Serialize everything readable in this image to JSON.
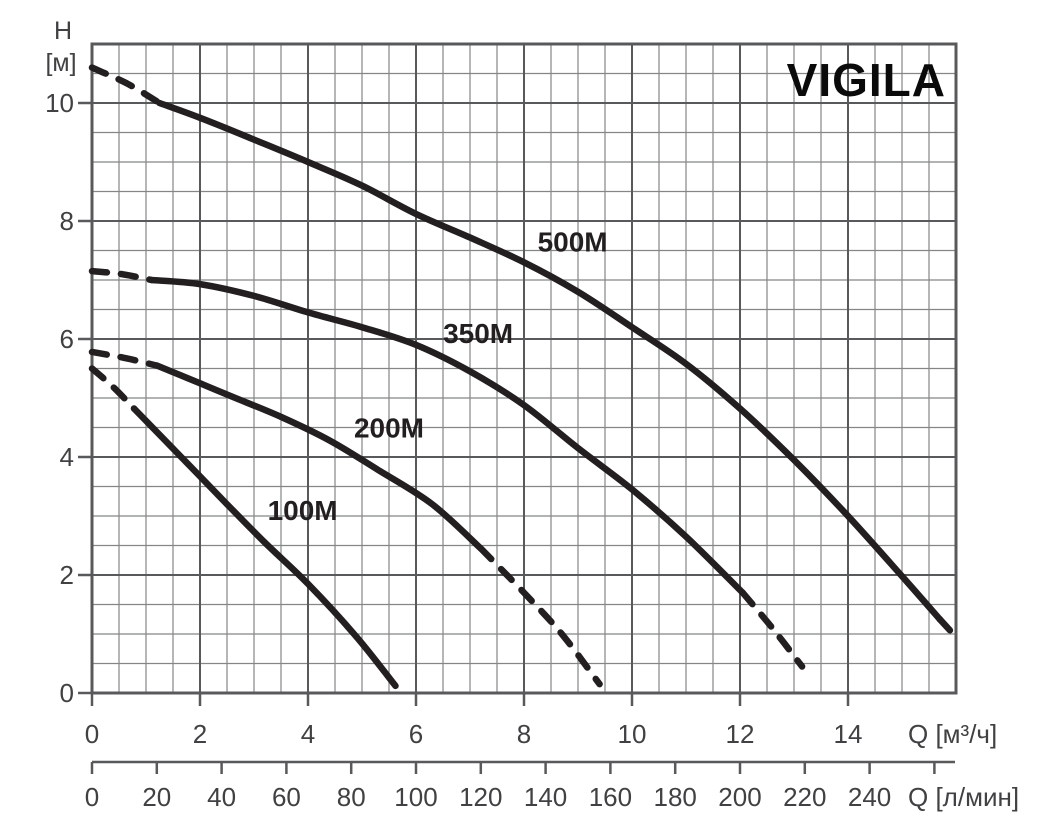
{
  "chart_data": {
    "type": "line",
    "title": "VIGILA",
    "grid": true,
    "legend": "labels-on-curves",
    "colors": {
      "curve": "#231f20",
      "grid_minor": "#848688",
      "grid_major": "#58595b",
      "axis": "#58595b",
      "text": "#414042",
      "title": "#0a0a0a"
    },
    "x_axis": {
      "label": "Q [м³/ч]",
      "min": 0,
      "max": 16,
      "major_step": 2,
      "minor_step": 0.5,
      "ticks": [
        "0",
        "2",
        "4",
        "6",
        "8",
        "10",
        "12",
        "14"
      ]
    },
    "y_axis": {
      "label_line1": "H",
      "label_line2": "[м]",
      "min": 0,
      "max": 11,
      "major_step": 2,
      "minor_step": 0.5,
      "ticks": [
        "0",
        "2",
        "4",
        "6",
        "8",
        "10"
      ]
    },
    "x_axis_secondary": {
      "label": "Q [л/мин]",
      "ticks": [
        "0",
        "20",
        "40",
        "60",
        "80",
        "100",
        "120",
        "140",
        "160",
        "180",
        "200",
        "220",
        "240"
      ],
      "tick_step": 20,
      "last_unlabeled_tick": 260,
      "lpm_per_m3h": 16.6667
    },
    "series": [
      {
        "name": "500M",
        "label_q": 8.9,
        "label_h": 7.65,
        "segments": [
          {
            "style": "dashed",
            "points": [
              [
                0,
                10.6
              ],
              [
                0.65,
                10.33
              ],
              [
                1.25,
                10.0
              ]
            ]
          },
          {
            "style": "solid",
            "points": [
              [
                1.25,
                10.0
              ],
              [
                2,
                9.75
              ],
              [
                3,
                9.38
              ],
              [
                4,
                9.0
              ],
              [
                5,
                8.6
              ],
              [
                6,
                8.12
              ],
              [
                7,
                7.72
              ],
              [
                8,
                7.3
              ],
              [
                9,
                6.8
              ],
              [
                10,
                6.2
              ],
              [
                11,
                5.58
              ],
              [
                12,
                4.82
              ],
              [
                13,
                3.95
              ],
              [
                14,
                3.0
              ],
              [
                15,
                1.98
              ],
              [
                15.7,
                1.25
              ]
            ]
          },
          {
            "style": "dashed",
            "points": [
              [
                15.7,
                1.25
              ],
              [
                15.95,
                1.0
              ]
            ]
          }
        ]
      },
      {
        "name": "350M",
        "label_q": 7.15,
        "label_h": 6.1,
        "segments": [
          {
            "style": "dashed",
            "points": [
              [
                0,
                7.15
              ],
              [
                0.55,
                7.1
              ],
              [
                1.1,
                7.0
              ]
            ]
          },
          {
            "style": "solid",
            "points": [
              [
                1.1,
                7.0
              ],
              [
                2,
                6.93
              ],
              [
                3,
                6.73
              ],
              [
                4,
                6.45
              ],
              [
                5,
                6.2
              ],
              [
                6,
                5.9
              ],
              [
                7,
                5.45
              ],
              [
                8,
                4.88
              ],
              [
                9,
                4.15
              ],
              [
                10,
                3.45
              ],
              [
                11,
                2.65
              ],
              [
                12.05,
                1.7
              ]
            ]
          },
          {
            "style": "dashed",
            "points": [
              [
                12.05,
                1.7
              ],
              [
                12.6,
                1.1
              ],
              [
                13.15,
                0.45
              ]
            ]
          }
        ]
      },
      {
        "name": "200M",
        "label_q": 5.5,
        "label_h": 4.5,
        "segments": [
          {
            "style": "dashed",
            "points": [
              [
                0,
                5.78
              ],
              [
                0.6,
                5.68
              ],
              [
                1.2,
                5.55
              ]
            ]
          },
          {
            "style": "solid",
            "points": [
              [
                1.2,
                5.55
              ],
              [
                2,
                5.25
              ],
              [
                2.6,
                5.02
              ],
              [
                3.5,
                4.68
              ],
              [
                4.4,
                4.28
              ],
              [
                5.3,
                3.78
              ],
              [
                6.3,
                3.2
              ],
              [
                7.2,
                2.45
              ]
            ]
          },
          {
            "style": "dashed",
            "points": [
              [
                7.2,
                2.45
              ],
              [
                8,
                1.7
              ],
              [
                8.7,
                1.0
              ],
              [
                9.4,
                0.15
              ]
            ]
          }
        ]
      },
      {
        "name": "100M",
        "label_q": 3.9,
        "label_h": 3.1,
        "segments": [
          {
            "style": "dashed",
            "points": [
              [
                0,
                5.5
              ],
              [
                0.4,
                5.18
              ],
              [
                0.78,
                4.82
              ]
            ]
          },
          {
            "style": "solid",
            "points": [
              [
                0.78,
                4.82
              ],
              [
                1.6,
                4.05
              ],
              [
                2.5,
                3.2
              ],
              [
                3.2,
                2.55
              ],
              [
                4,
                1.85
              ],
              [
                4.9,
                0.95
              ],
              [
                5.62,
                0.12
              ]
            ]
          }
        ]
      }
    ]
  }
}
